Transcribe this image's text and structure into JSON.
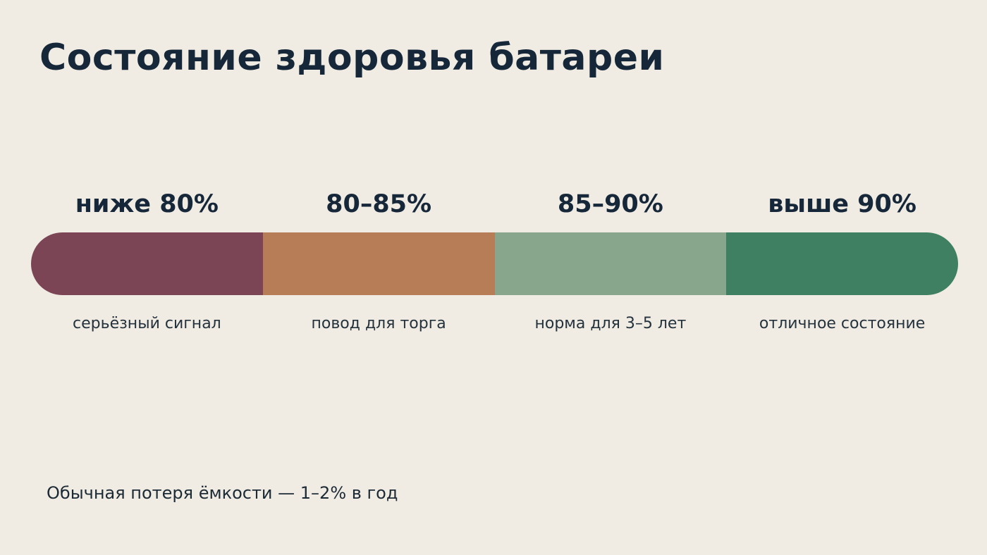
{
  "title": "Состояние здоровья батареи",
  "scale": {
    "segments": [
      {
        "range": "ниже 80%",
        "note": "серьёзный сигнал",
        "color": "#7c4555"
      },
      {
        "range": "80–85%",
        "note": "повод для торга",
        "color": "#b77d56"
      },
      {
        "range": "85–90%",
        "note": "норма для 3–5 лет",
        "color": "#88a68c"
      },
      {
        "range": "выше 90%",
        "note": "отличное состояние",
        "color": "#3e8061"
      }
    ]
  },
  "footnote": "Обычная потеря ёмкости — 1–2% в год"
}
